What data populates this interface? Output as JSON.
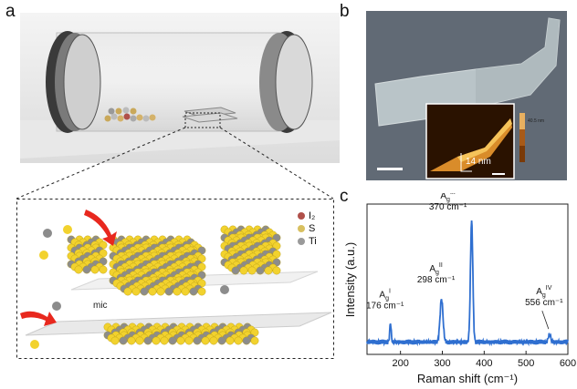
{
  "panels": {
    "a": "a",
    "b": "b",
    "c": "c"
  },
  "legend": [
    {
      "label": "I₂",
      "color": "#b0504a"
    },
    {
      "label": "S",
      "color": "#d8c060"
    },
    {
      "label": "Ti",
      "color": "#9a9a9a"
    }
  ],
  "substrate_text": "mic",
  "inset": {
    "step_label": "14 nm",
    "colorbar_max": "40.5 nm"
  },
  "colors": {
    "line": "#2f6fd0",
    "sulfur": "#f2d22e",
    "titanium": "#8c8c8c",
    "arrow": "#e8281e"
  },
  "chart_data": {
    "type": "line",
    "xlabel": "Raman shift (cm⁻¹)",
    "ylabel": "Intensity (a.u.)",
    "xlim": [
      120,
      600
    ],
    "xticks": [
      "200",
      "300",
      "400",
      "500",
      "600"
    ],
    "peaks": [
      {
        "x": 176,
        "y": 0.19,
        "label": "A",
        "sup": "I",
        "sub": "g",
        "value": "176 cm⁻¹"
      },
      {
        "x": 298,
        "y": 0.38,
        "label": "A",
        "sup": "II",
        "sub": "g",
        "value": "298 cm⁻¹"
      },
      {
        "x": 370,
        "y": 1.0,
        "label": "A",
        "sup": "III",
        "sub": "g",
        "value": "370 cm⁻¹"
      },
      {
        "x": 556,
        "y": 0.1,
        "label": "A",
        "sup": "IV",
        "sub": "g",
        "value": "556 cm⁻¹"
      }
    ],
    "baseline": 0.04
  }
}
